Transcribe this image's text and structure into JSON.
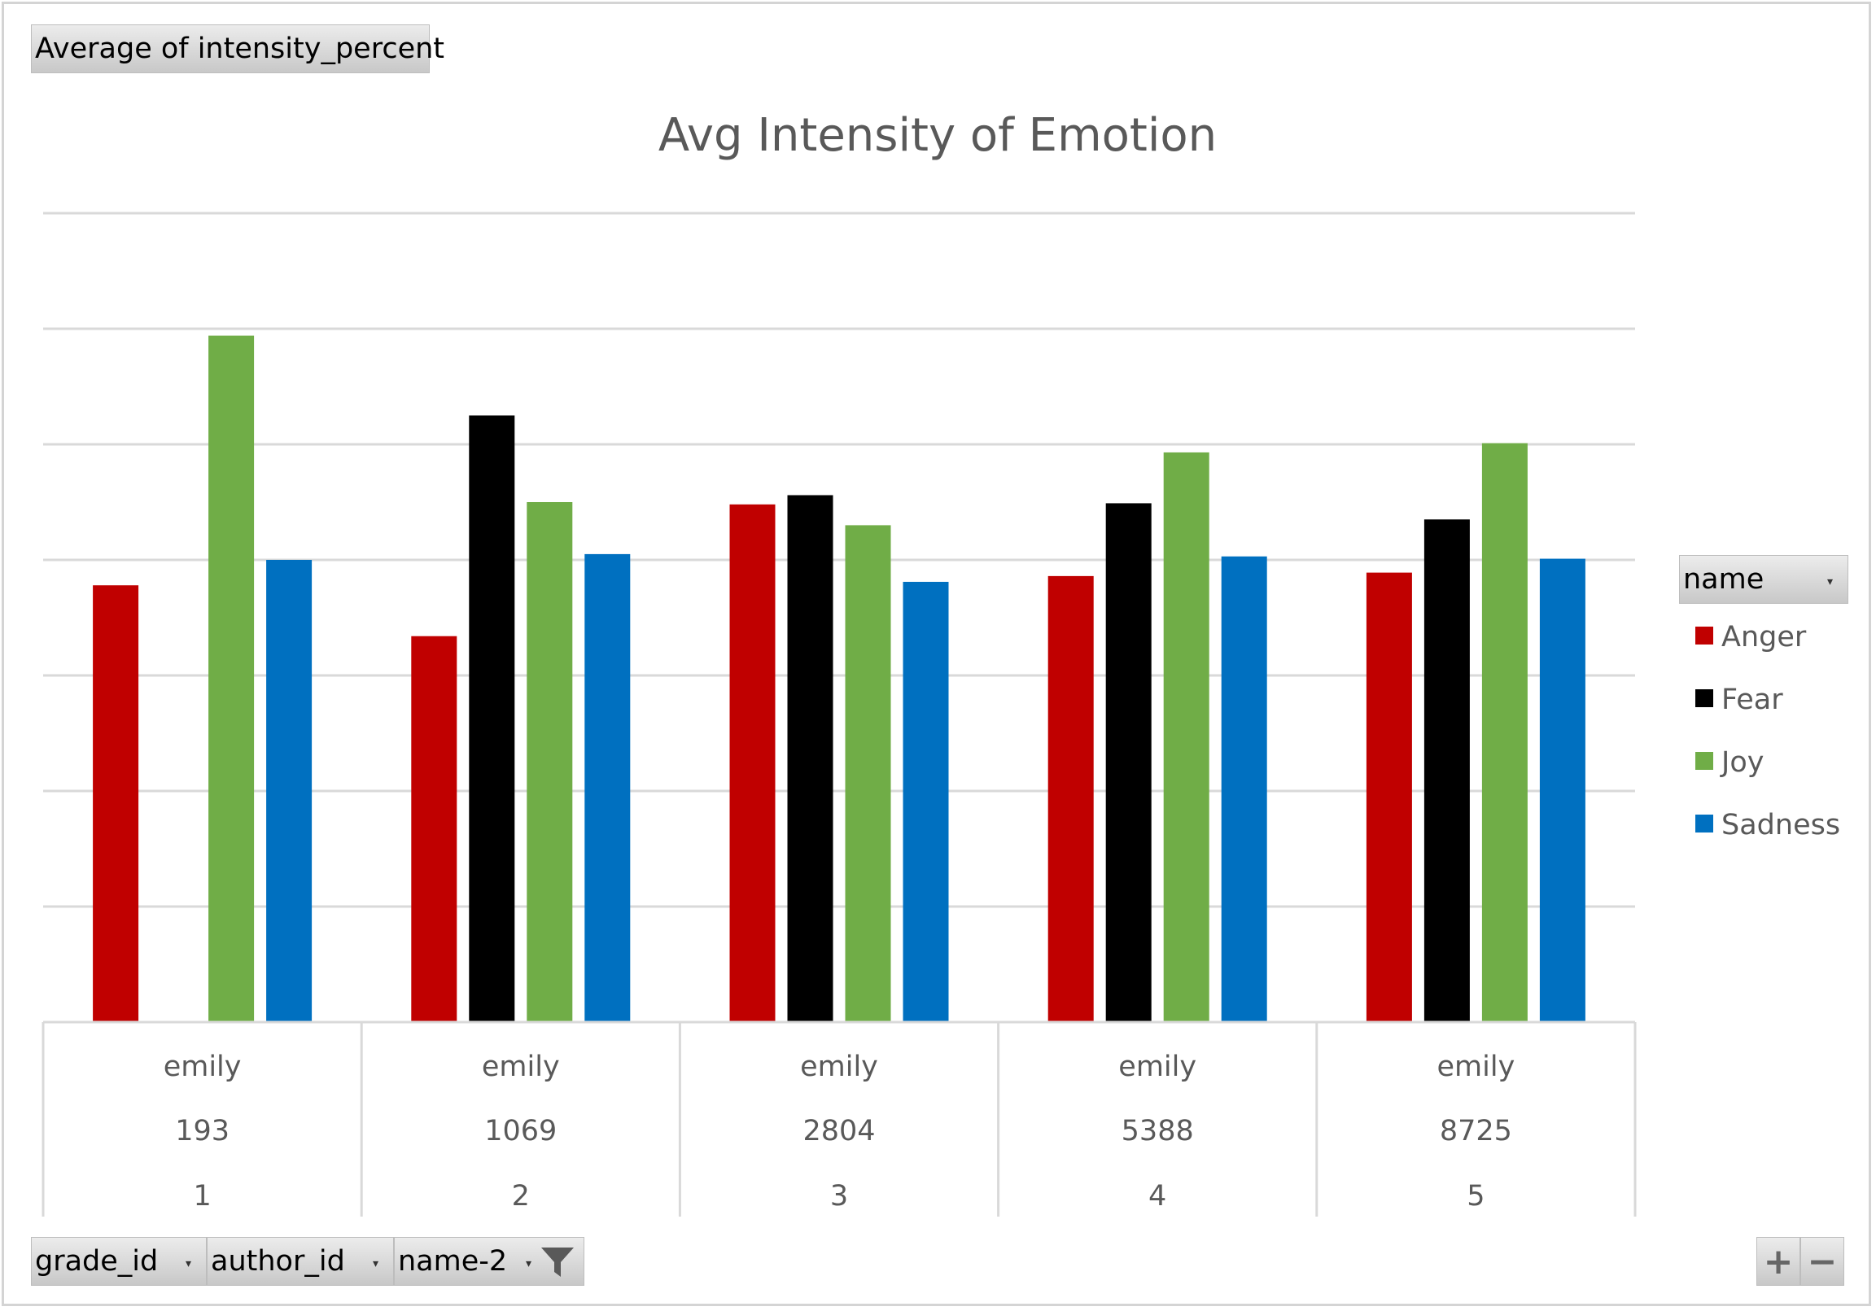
{
  "value_field_button": "Average  of intensity_percent",
  "legend_field_button": "name",
  "axis_field_buttons": [
    "grade_id",
    "author_id",
    "name-2"
  ],
  "zoom": {
    "plus": "+",
    "minus": "−"
  },
  "colors": {
    "Anger": "#c00000",
    "Fear": "#000000",
    "Joy": "#70ad47",
    "Sadness": "#0070c0"
  },
  "chart_data": {
    "type": "bar",
    "title": "Avg Intensity of Emotion",
    "categories": [
      [
        "emily",
        "193",
        "1"
      ],
      [
        "emily",
        "1069",
        "2"
      ],
      [
        "emily",
        "2804",
        "3"
      ],
      [
        "emily",
        "5388",
        "4"
      ],
      [
        "emily",
        "8725",
        "5"
      ]
    ],
    "series": [
      {
        "name": "Anger",
        "values": [
          37.8,
          33.4,
          44.8,
          38.6,
          38.9
        ]
      },
      {
        "name": "Fear",
        "values": [
          null,
          52.5,
          45.6,
          44.9,
          43.5
        ]
      },
      {
        "name": "Joy",
        "values": [
          59.4,
          45.0,
          43.0,
          49.3,
          50.1
        ]
      },
      {
        "name": "Sadness",
        "values": [
          40.0,
          40.5,
          38.1,
          40.3,
          40.1
        ]
      }
    ],
    "ylim": [
      0,
      70
    ],
    "grid": true,
    "legend": "right"
  }
}
